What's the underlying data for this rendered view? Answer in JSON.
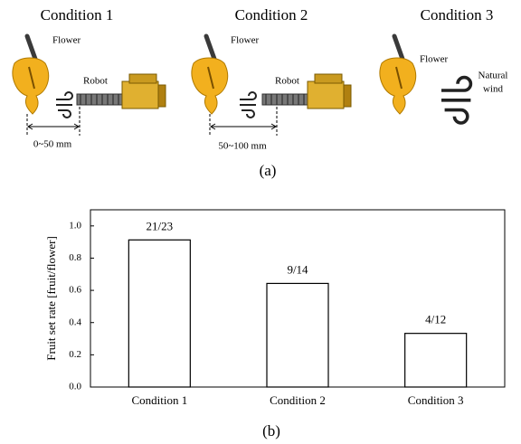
{
  "panel_a": {
    "label": "(a)",
    "conditions": [
      {
        "title": "Condition 1",
        "flower": "Flower",
        "robot": "Robot",
        "distance": "0~50 mm"
      },
      {
        "title": "Condition 2",
        "flower": "Flower",
        "robot": "Robot",
        "distance": "50~100 mm"
      },
      {
        "title": "Condition 3",
        "flower": "Flower",
        "wind": [
          "Natural",
          "wind"
        ]
      }
    ]
  },
  "chart_data": {
    "type": "bar",
    "label": "(b)",
    "y_label": "Fruit set rate [fruit/flower]",
    "categories": [
      "Condition 1",
      "Condition 2",
      "Condition 3"
    ],
    "values": [
      0.913,
      0.643,
      0.333
    ],
    "value_labels": [
      "21/23",
      "9/14",
      "4/12"
    ],
    "color": "#ffffff",
    "ylim": [
      0,
      1.1
    ],
    "yticks": [
      {
        "value": 0,
        "label": "0.0"
      },
      0.2,
      0.4,
      0.6,
      0.8,
      {
        "value": 1,
        "label": "1.0"
      }
    ],
    "grid": false
  }
}
